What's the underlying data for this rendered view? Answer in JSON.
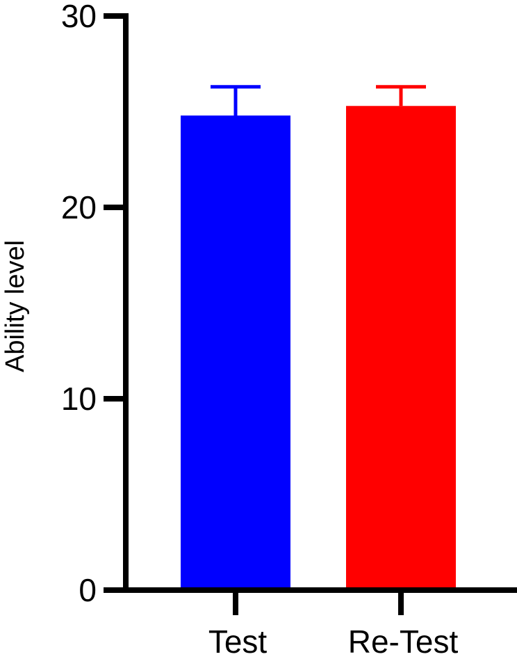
{
  "chart_data": {
    "type": "bar",
    "title": "",
    "xlabel": "",
    "ylabel": "Ability level",
    "ylim": [
      0,
      30
    ],
    "yticks": [
      0,
      10,
      20,
      30
    ],
    "categories": [
      "Test",
      "Re-Test"
    ],
    "values": [
      24.8,
      25.3
    ],
    "error_upper": [
      26.3,
      26.3
    ],
    "colors": [
      "#0000ff",
      "#ff0000"
    ],
    "grid": false,
    "legend": "none"
  }
}
